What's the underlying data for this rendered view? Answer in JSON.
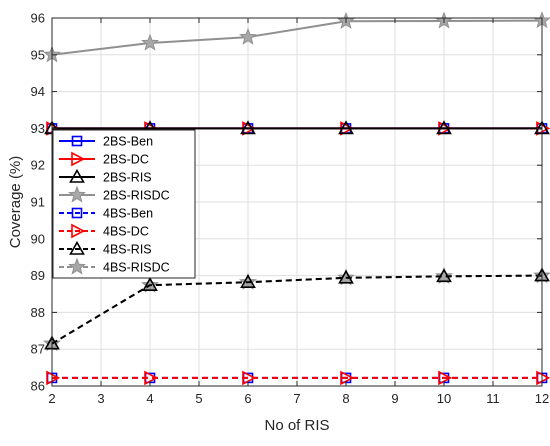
{
  "chart_data": {
    "type": "line",
    "title": "",
    "xlabel": "No of RIS",
    "ylabel": "Coverage (%)",
    "xlim": [
      2,
      12
    ],
    "ylim": [
      86,
      96
    ],
    "xticks": [
      2,
      3,
      4,
      5,
      6,
      7,
      8,
      9,
      10,
      11,
      12
    ],
    "yticks": [
      86,
      87,
      88,
      89,
      90,
      91,
      92,
      93,
      94,
      95,
      96
    ],
    "grid": true,
    "legend_position": "left",
    "x": [
      2,
      4,
      6,
      8,
      10,
      12
    ],
    "series": [
      {
        "name": "2BS-Ben",
        "values": [
          93.0,
          93.0,
          93.0,
          93.0,
          93.0,
          93.0
        ],
        "color": "#0000ff",
        "dash": "solid",
        "marker": "square"
      },
      {
        "name": "2BS-DC",
        "values": [
          93.0,
          93.0,
          93.0,
          93.0,
          93.0,
          93.0
        ],
        "color": "#ff0000",
        "dash": "solid",
        "marker": "triangle-right"
      },
      {
        "name": "2BS-RIS",
        "values": [
          93.0,
          93.0,
          93.0,
          93.0,
          93.0,
          93.0
        ],
        "color": "#000000",
        "dash": "solid",
        "marker": "triangle-up"
      },
      {
        "name": "2BS-RISDC",
        "values": [
          95.0,
          95.32,
          95.48,
          95.91,
          95.92,
          95.93
        ],
        "color": "#909090",
        "dash": "solid",
        "marker": "star"
      },
      {
        "name": "4BS-Ben",
        "values": [
          86.22,
          86.22,
          86.22,
          86.22,
          86.22,
          86.22
        ],
        "color": "#0000ff",
        "dash": "dashed",
        "marker": "square"
      },
      {
        "name": "4BS-DC",
        "values": [
          86.22,
          86.22,
          86.22,
          86.22,
          86.22,
          86.22
        ],
        "color": "#ff0000",
        "dash": "dashed",
        "marker": "triangle-right"
      },
      {
        "name": "4BS-RIS",
        "values": [
          87.15,
          88.74,
          88.82,
          88.94,
          88.98,
          89.0
        ],
        "color": "#000000",
        "dash": "dashed",
        "marker": "triangle-up"
      },
      {
        "name": "4BS-RISDC",
        "values": [
          87.15,
          88.74,
          88.82,
          88.94,
          88.98,
          89.0
        ],
        "color": "#909090",
        "dash": "dashed",
        "marker": "star"
      }
    ]
  }
}
